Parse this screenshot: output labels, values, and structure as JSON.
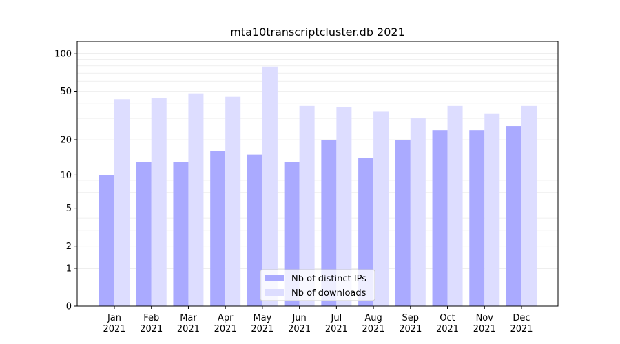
{
  "chart_data": {
    "type": "bar",
    "title": "mta10transcriptcluster.db 2021",
    "xlabel": "",
    "ylabel": "",
    "y_scale": "log(1+y)",
    "ylim": [
      0,
      120
    ],
    "yticks": [
      0,
      1,
      2,
      5,
      10,
      20,
      50,
      100
    ],
    "grid": true,
    "legend_position": "lower center",
    "categories": [
      "Jan\n2021",
      "Feb\n2021",
      "Mar\n2021",
      "Apr\n2021",
      "May\n2021",
      "Jun\n2021",
      "Jul\n2021",
      "Aug\n2021",
      "Sep\n2021",
      "Oct\n2021",
      "Nov\n2021",
      "Dec\n2021"
    ],
    "series": [
      {
        "name": "Nb of distinct IPs",
        "color": "#aaaaff",
        "values": [
          10,
          13,
          13,
          16,
          15,
          13,
          20,
          14,
          20,
          24,
          24,
          26
        ]
      },
      {
        "name": "Nb of downloads",
        "color": "#ddddff",
        "values": [
          43,
          44,
          48,
          45,
          79,
          38,
          37,
          34,
          30,
          38,
          33,
          38
        ]
      }
    ]
  }
}
